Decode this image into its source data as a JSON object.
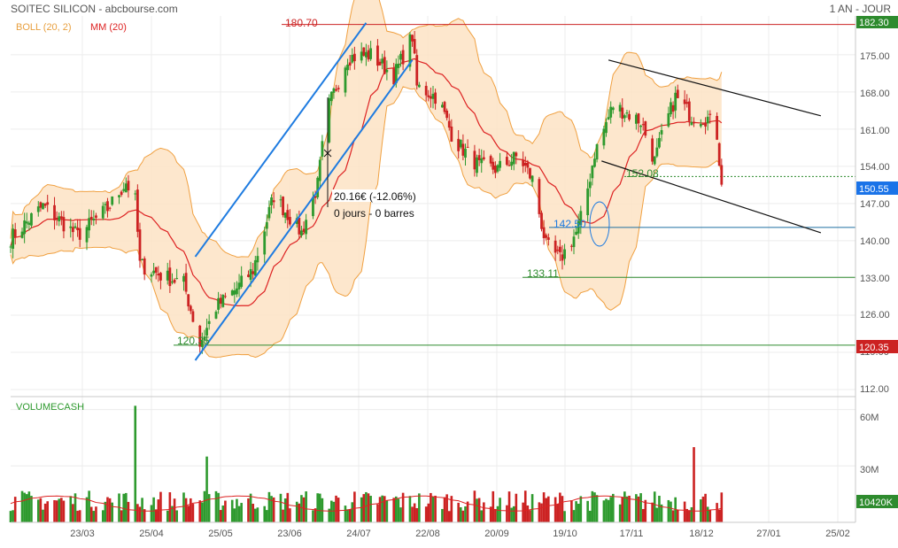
{
  "header": {
    "title": "SOITEC SILICON - abcbourse.com",
    "period": "1 AN - JOUR"
  },
  "legend": {
    "boll": "BOLL (20, 2)",
    "mm": "MM (20)",
    "volume": "VOLUMECASH"
  },
  "colors": {
    "up": "#2e9a2e",
    "down": "#cc2222",
    "bollinger_fill": "#fde3c4",
    "bollinger_line": "#f0a040",
    "mm": "#dd2222",
    "trend": "#1e7be0",
    "channel": "#111111",
    "price_badge": "#1a73e8",
    "support_badge": "#2e8b2e",
    "resistance_badge": "#cc2222"
  },
  "price_axis": {
    "ticks": [
      "175.00",
      "168.00",
      "161.00",
      "154.00",
      "147.00",
      "140.00",
      "133.00",
      "126.00",
      "119.00",
      "112.00"
    ],
    "top_badge": "182.30"
  },
  "volume_axis": {
    "ticks": [
      "60M",
      "30M"
    ],
    "last_badge": "10420K"
  },
  "x_axis": {
    "labels": [
      "23/03",
      "25/04",
      "25/05",
      "23/06",
      "24/07",
      "22/08",
      "20/09",
      "19/10",
      "17/11",
      "18/12",
      "27/01",
      "25/02"
    ]
  },
  "annotations": {
    "resistance": "180.70",
    "support_low": "120.35",
    "support_mid": "133.11",
    "level_142": "142.50",
    "level_152": "152.08",
    "last_price": "150.55",
    "support_badge": "120.35",
    "measure_value": "20.16€ (-12.06%)",
    "measure_bars": "0 jours - 0 barres"
  },
  "chart_data": {
    "type": "candlestick",
    "title": "SOITEC SILICON - abcbourse.com",
    "period": "1 AN - JOUR",
    "x_range": [
      "2023-03-01",
      "2024-03-01"
    ],
    "ylim": [
      112,
      182.3
    ],
    "volume_ylim_millions": [
      0,
      65
    ],
    "x_labels": [
      "23/03",
      "25/04",
      "25/05",
      "23/06",
      "24/07",
      "22/08",
      "20/09",
      "19/10",
      "17/11",
      "18/12",
      "27/01",
      "25/02"
    ],
    "indicators": [
      "BOLL (20, 2)",
      "MM (20)",
      "VOLUMECASH"
    ],
    "close_path": [
      {
        "date": "2023-03-01",
        "close": 140.5
      },
      {
        "date": "2023-03-15",
        "close": 146.5
      },
      {
        "date": "2023-03-30",
        "close": 141.0
      },
      {
        "date": "2023-04-12",
        "close": 146.0
      },
      {
        "date": "2023-04-20",
        "close": 151.0
      },
      {
        "date": "2023-04-24",
        "close": 147.5
      },
      {
        "date": "2023-04-26",
        "close": 135.5
      },
      {
        "date": "2023-05-05",
        "close": 133.5
      },
      {
        "date": "2023-05-15",
        "close": 132.0
      },
      {
        "date": "2023-05-22",
        "close": 120.5
      },
      {
        "date": "2023-05-29",
        "close": 127.5
      },
      {
        "date": "2023-06-07",
        "close": 131.0
      },
      {
        "date": "2023-06-14",
        "close": 134.5
      },
      {
        "date": "2023-06-23",
        "close": 148.5
      },
      {
        "date": "2023-07-05",
        "close": 141.5
      },
      {
        "date": "2023-07-12",
        "close": 150.5
      },
      {
        "date": "2023-07-16",
        "close": 164.5
      },
      {
        "date": "2023-07-25",
        "close": 174.5
      },
      {
        "date": "2023-08-04",
        "close": 175.0
      },
      {
        "date": "2023-08-14",
        "close": 171.0
      },
      {
        "date": "2023-08-22",
        "close": 178.5
      },
      {
        "date": "2023-08-24",
        "close": 169.0
      },
      {
        "date": "2023-09-02",
        "close": 167.0
      },
      {
        "date": "2023-09-09",
        "close": 159.0
      },
      {
        "date": "2023-09-20",
        "close": 154.0
      },
      {
        "date": "2023-09-28",
        "close": 153.5
      },
      {
        "date": "2023-10-07",
        "close": 156.0
      },
      {
        "date": "2023-10-13",
        "close": 151.5
      },
      {
        "date": "2023-10-19",
        "close": 139.0
      },
      {
        "date": "2023-10-25",
        "close": 136.5
      },
      {
        "date": "2023-11-01",
        "close": 141.5
      },
      {
        "date": "2023-11-04",
        "close": 145.5
      },
      {
        "date": "2023-11-09",
        "close": 156.5
      },
      {
        "date": "2023-11-17",
        "close": 165.5
      },
      {
        "date": "2023-11-29",
        "close": 162.5
      },
      {
        "date": "2023-12-05",
        "close": 155.0
      },
      {
        "date": "2023-12-09",
        "close": 161.0
      },
      {
        "date": "2023-12-14",
        "close": 167.0
      },
      {
        "date": "2023-12-21",
        "close": 163.5
      },
      {
        "date": "2023-12-28",
        "close": 163.0
      },
      {
        "date": "2024-01-01",
        "close": 160.0
      },
      {
        "date": "2024-01-03",
        "close": 150.55
      }
    ],
    "last_close": 150.55,
    "last_volume": "10420K",
    "volume_spikes_millions": [
      {
        "date": "2023-04-24",
        "volume": 62
      },
      {
        "date": "2023-05-25",
        "volume": 35
      },
      {
        "date": "2023-12-22",
        "volume": 40
      }
    ],
    "horizontal_levels": [
      {
        "label": "180.70",
        "value": 180.7
      },
      {
        "label": "152.08",
        "value": 152.08
      },
      {
        "label": "142.50",
        "value": 142.5
      },
      {
        "label": "133.11",
        "value": 133.11
      },
      {
        "label": "120.35",
        "value": 120.35
      }
    ],
    "trend_lines": [
      {
        "color": "blue",
        "from": {
          "date": "2023-05-20",
          "price": 137.0
        },
        "to": {
          "date": "2023-08-02",
          "price": 181.0
        }
      },
      {
        "color": "blue",
        "from": {
          "date": "2023-05-20",
          "price": 117.5
        },
        "to": {
          "date": "2023-08-22",
          "price": 174.0
        }
      },
      {
        "color": "black",
        "from": {
          "date": "2023-11-15",
          "price": 174.0
        },
        "to": {
          "date": "2024-02-15",
          "price": 163.5
        }
      },
      {
        "color": "black",
        "from": {
          "date": "2023-11-12",
          "price": 155.0
        },
        "to": {
          "date": "2024-02-15",
          "price": 141.5
        }
      }
    ],
    "measure": {
      "value": "20.16€ (-12.06%)",
      "bars": "0 jours - 0 barres"
    }
  }
}
